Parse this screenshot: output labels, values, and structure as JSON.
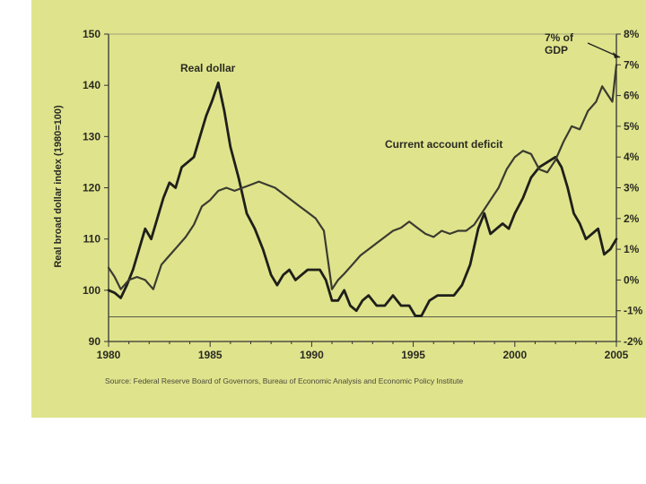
{
  "chart_data": {
    "type": "line",
    "ylabel": "Real broad dollar index (1980=100)",
    "xlim": [
      1980,
      2005
    ],
    "x_ticks": [
      "1980",
      "1985",
      "1990",
      "1995",
      "2000",
      "2005"
    ],
    "ylim_left": [
      90,
      150
    ],
    "left_ticks": [
      "150",
      "140",
      "130",
      "120",
      "110",
      "100",
      "90"
    ],
    "ylim_right": [
      -2,
      8
    ],
    "right_ticks": [
      "8%",
      "7%",
      "6%",
      "5%",
      "4%",
      "3%",
      "2%",
      "1%",
      "0%",
      "-1%",
      "-2%"
    ],
    "grid": false,
    "series": [
      {
        "name": "Real dollar",
        "axis": "left",
        "x": [
          1980.0,
          1980.3,
          1980.6,
          1980.9,
          1981.2,
          1981.5,
          1981.8,
          1982.1,
          1982.4,
          1982.7,
          1983.0,
          1983.3,
          1983.6,
          1983.9,
          1984.2,
          1984.5,
          1984.8,
          1985.1,
          1985.4,
          1985.7,
          1986.0,
          1986.4,
          1986.8,
          1987.2,
          1987.6,
          1988.0,
          1988.3,
          1988.6,
          1988.9,
          1989.2,
          1989.5,
          1989.8,
          1990.1,
          1990.4,
          1990.7,
          1991.0,
          1991.3,
          1991.6,
          1991.9,
          1992.2,
          1992.5,
          1992.8,
          1993.2,
          1993.6,
          1994.0,
          1994.4,
          1994.8,
          1995.1,
          1995.4,
          1995.8,
          1996.2,
          1996.6,
          1997.0,
          1997.4,
          1997.8,
          1998.2,
          1998.5,
          1998.8,
          1999.1,
          1999.4,
          1999.7,
          2000.0,
          2000.4,
          2000.8,
          2001.2,
          2001.6,
          2002.0,
          2002.3,
          2002.6,
          2002.9,
          2003.2,
          2003.5,
          2003.8,
          2004.1,
          2004.4,
          2004.7,
          2005.0
        ],
        "values": [
          100,
          99.5,
          98.5,
          101,
          104,
          108,
          112,
          110,
          114,
          118,
          121,
          120,
          124,
          125,
          126,
          130,
          134,
          137,
          140.5,
          135,
          128,
          122,
          115,
          112,
          108,
          103,
          101,
          103,
          104,
          102,
          103,
          104,
          104,
          104,
          102,
          98,
          98,
          100,
          97,
          96,
          98,
          99,
          97,
          97,
          99,
          97,
          97,
          95,
          95,
          98,
          99,
          99,
          99,
          101,
          105,
          112,
          115,
          111,
          112,
          113,
          112,
          115,
          118,
          122,
          124,
          125,
          126,
          124,
          120,
          115,
          113,
          110,
          111,
          112,
          107,
          108,
          110
        ]
      },
      {
        "name": "Current account deficit",
        "axis": "right",
        "x": [
          1980.0,
          1980.3,
          1980.6,
          1981.0,
          1981.4,
          1981.8,
          1982.2,
          1982.6,
          1983.0,
          1983.4,
          1983.8,
          1984.2,
          1984.6,
          1985.0,
          1985.4,
          1985.8,
          1986.2,
          1986.6,
          1987.0,
          1987.4,
          1987.8,
          1988.2,
          1988.6,
          1989.0,
          1989.4,
          1989.8,
          1990.2,
          1990.6,
          1991.0,
          1991.3,
          1991.6,
          1992.0,
          1992.4,
          1992.8,
          1993.2,
          1993.6,
          1994.0,
          1994.4,
          1994.8,
          1995.2,
          1995.6,
          1996.0,
          1996.4,
          1996.8,
          1997.2,
          1997.6,
          1998.0,
          1998.4,
          1998.8,
          1999.2,
          1999.6,
          2000.0,
          2000.4,
          2000.8,
          2001.2,
          2001.6,
          2002.0,
          2002.4,
          2002.8,
          2003.2,
          2003.6,
          2004.0,
          2004.3,
          2004.6,
          2004.8,
          2005.0
        ],
        "values": [
          0.4,
          0.1,
          -0.3,
          0.0,
          0.1,
          0.0,
          -0.3,
          0.5,
          0.8,
          1.1,
          1.4,
          1.8,
          2.4,
          2.6,
          2.9,
          3.0,
          2.9,
          3.0,
          3.1,
          3.2,
          3.1,
          3.0,
          2.8,
          2.6,
          2.4,
          2.2,
          2.0,
          1.6,
          -0.3,
          0.0,
          0.2,
          0.5,
          0.8,
          1.0,
          1.2,
          1.4,
          1.6,
          1.7,
          1.9,
          1.7,
          1.5,
          1.4,
          1.6,
          1.5,
          1.6,
          1.6,
          1.8,
          2.2,
          2.6,
          3.0,
          3.6,
          4.0,
          4.2,
          4.1,
          3.6,
          3.5,
          3.9,
          4.5,
          5.0,
          4.9,
          5.5,
          5.8,
          6.3,
          6.0,
          5.8,
          7.0
        ]
      }
    ],
    "annotations": [
      {
        "text_lines": [
          "7% of",
          "GDP"
        ]
      },
      {
        "text": "Real dollar"
      },
      {
        "text": "Current account deficit"
      }
    ],
    "source": "Source:  Federal Reserve Board of Governors, Bureau of Economic Analysis and Economic Policy Institute"
  }
}
